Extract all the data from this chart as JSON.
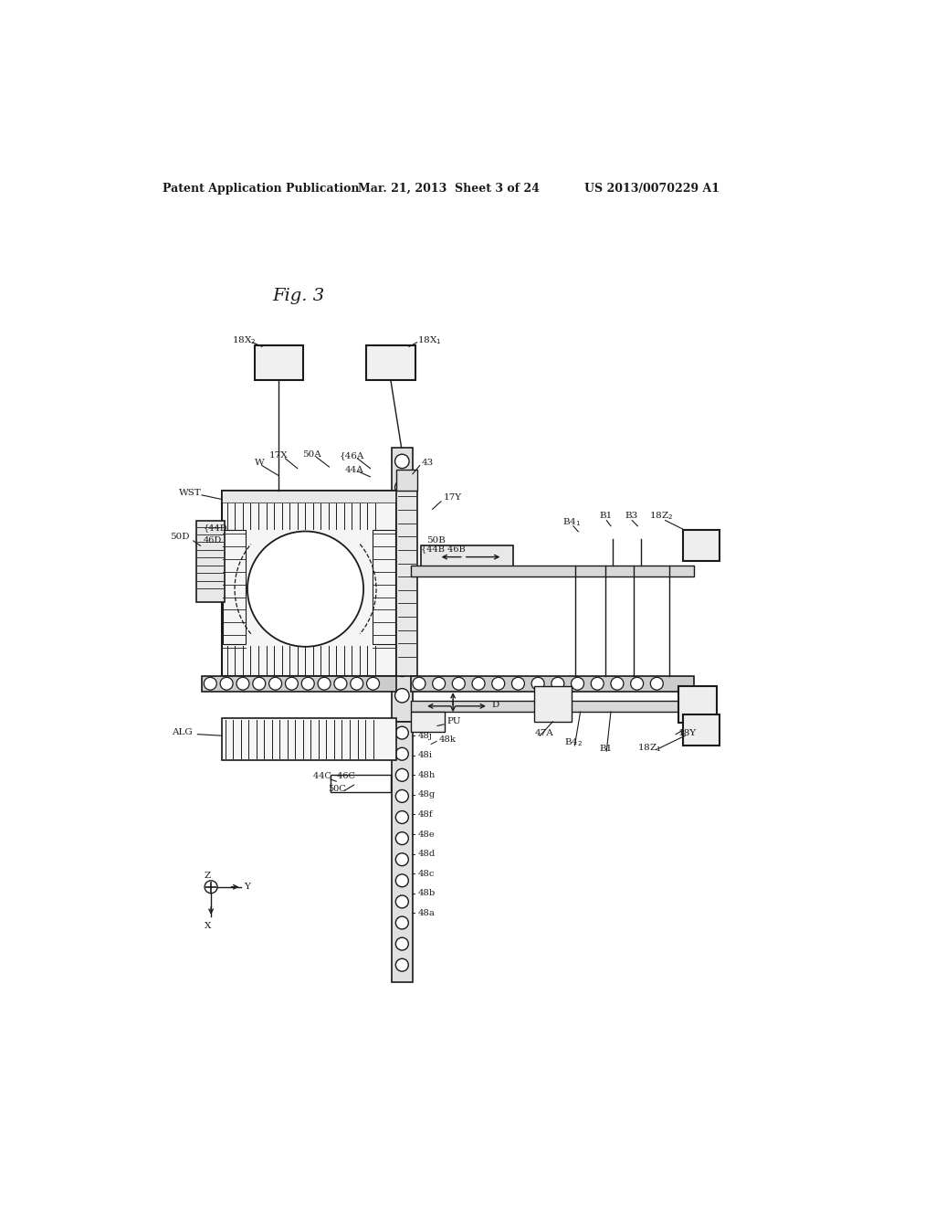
{
  "header_left": "Patent Application Publication",
  "header_mid": "Mar. 21, 2013  Sheet 3 of 24",
  "header_right": "US 2013/0070229 A1",
  "fig_label": "Fig. 3",
  "bg_color": "#ffffff",
  "lc": "#1a1a1a",
  "tc": "#1a1a1a",
  "labels_48": [
    "48j",
    "48i",
    "48h",
    "48g",
    "48f",
    "48e",
    "48d",
    "48c",
    "48b",
    "48a"
  ]
}
